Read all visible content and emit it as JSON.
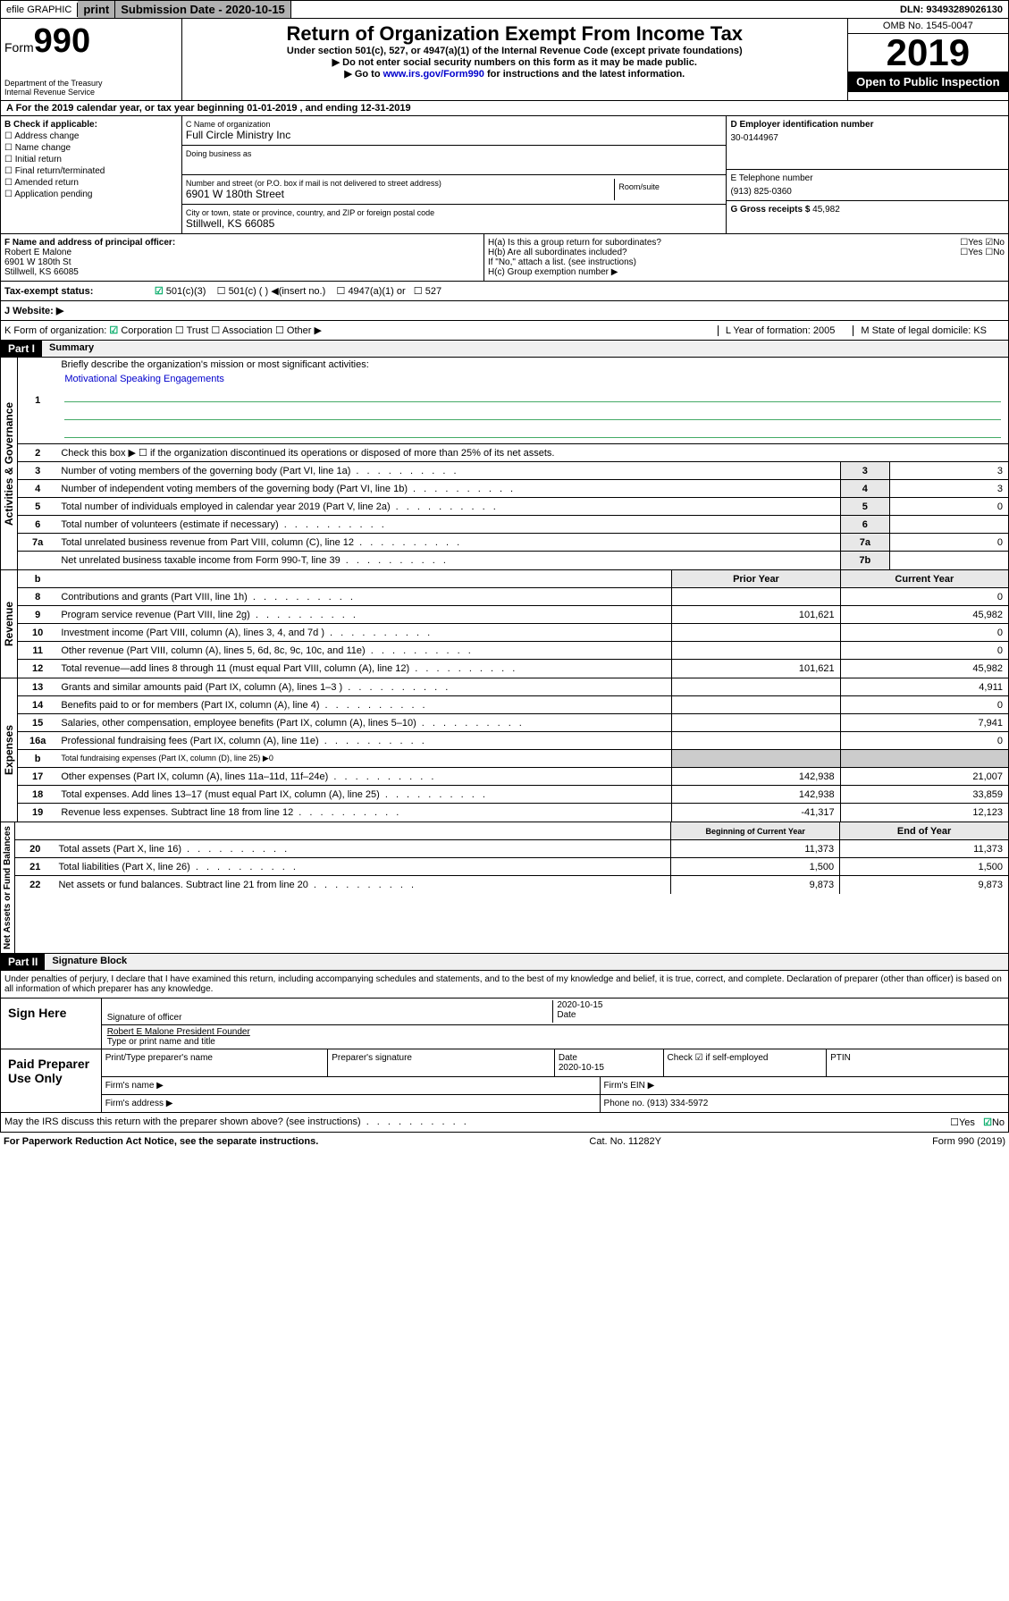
{
  "topbar": {
    "efile": "efile GRAPHIC",
    "print": "print",
    "subdate_lbl": "Submission Date - ",
    "subdate": "2020-10-15",
    "dln_lbl": "DLN: ",
    "dln": "93493289026130"
  },
  "header": {
    "form_lbl": "Form",
    "form_num": "990",
    "dept": "Department of the Treasury\nInternal Revenue Service",
    "title": "Return of Organization Exempt From Income Tax",
    "sub1": "Under section 501(c), 527, or 4947(a)(1) of the Internal Revenue Code (except private foundations)",
    "sub2": "▶ Do not enter social security numbers on this form as it may be made public.",
    "sub3_pre": "▶ Go to ",
    "sub3_link": "www.irs.gov/Form990",
    "sub3_post": " for instructions and the latest information.",
    "omb": "OMB No. 1545-0047",
    "year": "2019",
    "inspect": "Open to Public Inspection"
  },
  "sectionA": "A For the 2019 calendar year, or tax year beginning 01-01-2019   , and ending 12-31-2019",
  "colB": {
    "hdr": "B Check if applicable:",
    "opts": [
      "Address change",
      "Name change",
      "Initial return",
      "Final return/terminated",
      "Amended return",
      "Application pending"
    ]
  },
  "colC": {
    "name_lbl": "C Name of organization",
    "name": "Full Circle Ministry Inc",
    "dba_lbl": "Doing business as",
    "addr_lbl": "Number and street (or P.O. box if mail is not delivered to street address)",
    "room_lbl": "Room/suite",
    "addr": "6901 W 180th Street",
    "city_lbl": "City or town, state or province, country, and ZIP or foreign postal code",
    "city": "Stillwell, KS  66085"
  },
  "colD": {
    "ein_lbl": "D Employer identification number",
    "ein": "30-0144967",
    "phone_lbl": "E Telephone number",
    "phone": "(913) 825-0360",
    "gross_lbl": "G Gross receipts $ ",
    "gross": "45,982"
  },
  "colF": {
    "lbl": "F  Name and address of principal officer:",
    "name": "Robert E Malone",
    "addr": "6901 W 180th St",
    "city": "Stillwell, KS  66085"
  },
  "colH": {
    "a": "H(a)  Is this a group return for subordinates?",
    "b": "H(b)  Are all subordinates included?",
    "note": "If \"No,\" attach a list. (see instructions)",
    "c": "H(c)  Group exemption number ▶"
  },
  "status": {
    "lbl": "Tax-exempt status:",
    "opts": [
      "501(c)(3)",
      "501(c) (  ) ◀(insert no.)",
      "4947(a)(1) or",
      "527"
    ]
  },
  "website": {
    "lbl": "J   Website: ▶"
  },
  "korg": {
    "k": "K Form of organization:",
    "opts": [
      "Corporation",
      "Trust",
      "Association",
      "Other ▶"
    ],
    "l_lbl": "L Year of formation: ",
    "l": "2005",
    "m_lbl": "M State of legal domicile: ",
    "m": "KS"
  },
  "part1": {
    "hdr": "Part I",
    "title": "Summary",
    "q1": "Briefly describe the organization's mission or most significant activities:",
    "mission": "Motivational Speaking Engagements",
    "q2": "Check this box ▶ ☐  if the organization discontinued its operations or disposed of more than 25% of its net assets.",
    "rows_gov": [
      {
        "n": "3",
        "t": "Number of voting members of the governing body (Part VI, line 1a)",
        "box": "3",
        "v": "3"
      },
      {
        "n": "4",
        "t": "Number of independent voting members of the governing body (Part VI, line 1b)",
        "box": "4",
        "v": "3"
      },
      {
        "n": "5",
        "t": "Total number of individuals employed in calendar year 2019 (Part V, line 2a)",
        "box": "5",
        "v": "0"
      },
      {
        "n": "6",
        "t": "Total number of volunteers (estimate if necessary)",
        "box": "6",
        "v": ""
      },
      {
        "n": "7a",
        "t": "Total unrelated business revenue from Part VIII, column (C), line 12",
        "box": "7a",
        "v": "0"
      },
      {
        "n": "",
        "t": "Net unrelated business taxable income from Form 990-T, line 39",
        "box": "7b",
        "v": ""
      }
    ],
    "col_prior": "Prior Year",
    "col_curr": "Current Year",
    "rows_rev": [
      {
        "n": "8",
        "t": "Contributions and grants (Part VIII, line 1h)",
        "p": "",
        "c": "0"
      },
      {
        "n": "9",
        "t": "Program service revenue (Part VIII, line 2g)",
        "p": "101,621",
        "c": "45,982"
      },
      {
        "n": "10",
        "t": "Investment income (Part VIII, column (A), lines 3, 4, and 7d )",
        "p": "",
        "c": "0"
      },
      {
        "n": "11",
        "t": "Other revenue (Part VIII, column (A), lines 5, 6d, 8c, 9c, 10c, and 11e)",
        "p": "",
        "c": "0"
      },
      {
        "n": "12",
        "t": "Total revenue—add lines 8 through 11 (must equal Part VIII, column (A), line 12)",
        "p": "101,621",
        "c": "45,982"
      }
    ],
    "rows_exp": [
      {
        "n": "13",
        "t": "Grants and similar amounts paid (Part IX, column (A), lines 1–3 )",
        "p": "",
        "c": "4,911"
      },
      {
        "n": "14",
        "t": "Benefits paid to or for members (Part IX, column (A), line 4)",
        "p": "",
        "c": "0"
      },
      {
        "n": "15",
        "t": "Salaries, other compensation, employee benefits (Part IX, column (A), lines 5–10)",
        "p": "",
        "c": "7,941"
      },
      {
        "n": "16a",
        "t": "Professional fundraising fees (Part IX, column (A), line 11e)",
        "p": "",
        "c": "0"
      },
      {
        "n": "b",
        "t": "Total fundraising expenses (Part IX, column (D), line 25) ▶0",
        "p": "—",
        "c": "—"
      },
      {
        "n": "17",
        "t": "Other expenses (Part IX, column (A), lines 11a–11d, 11f–24e)",
        "p": "142,938",
        "c": "21,007"
      },
      {
        "n": "18",
        "t": "Total expenses. Add lines 13–17 (must equal Part IX, column (A), line 25)",
        "p": "142,938",
        "c": "33,859"
      },
      {
        "n": "19",
        "t": "Revenue less expenses. Subtract line 18 from line 12",
        "p": "-41,317",
        "c": "12,123"
      }
    ],
    "col_begin": "Beginning of Current Year",
    "col_end": "End of Year",
    "rows_net": [
      {
        "n": "20",
        "t": "Total assets (Part X, line 16)",
        "p": "11,373",
        "c": "11,373"
      },
      {
        "n": "21",
        "t": "Total liabilities (Part X, line 26)",
        "p": "1,500",
        "c": "1,500"
      },
      {
        "n": "22",
        "t": "Net assets or fund balances. Subtract line 21 from line 20",
        "p": "9,873",
        "c": "9,873"
      }
    ],
    "side_gov": "Activities & Governance",
    "side_rev": "Revenue",
    "side_exp": "Expenses",
    "side_net": "Net Assets or Fund Balances"
  },
  "part2": {
    "hdr": "Part II",
    "title": "Signature Block",
    "note": "Under penalties of perjury, I declare that I have examined this return, including accompanying schedules and statements, and to the best of my knowledge and belief, it is true, correct, and complete. Declaration of preparer (other than officer) is based on all information of which preparer has any knowledge.",
    "sign_here": "Sign Here",
    "sig_officer": "Signature of officer",
    "sig_date": "2020-10-15",
    "sig_date_lbl": "Date",
    "officer_name": "Robert E Malone  President Founder",
    "officer_lbl": "Type or print name and title",
    "paid": "Paid Preparer Use Only",
    "prep_name_lbl": "Print/Type preparer's name",
    "prep_sig_lbl": "Preparer's signature",
    "prep_date_lbl": "Date",
    "prep_date": "2020-10-15",
    "self_emp": "Check ☑ if self-employed",
    "ptin": "PTIN",
    "firm_name": "Firm's name   ▶",
    "firm_ein": "Firm's EIN ▶",
    "firm_addr": "Firm's address ▶",
    "firm_phone_lbl": "Phone no. ",
    "firm_phone": "(913) 334-5972"
  },
  "discuss": {
    "q": "May the IRS discuss this return with the preparer shown above? (see instructions)",
    "yes": "Yes",
    "no": "No"
  },
  "footer": {
    "left": "For Paperwork Reduction Act Notice, see the separate instructions.",
    "mid": "Cat. No. 11282Y",
    "right": "Form 990 (2019)"
  }
}
